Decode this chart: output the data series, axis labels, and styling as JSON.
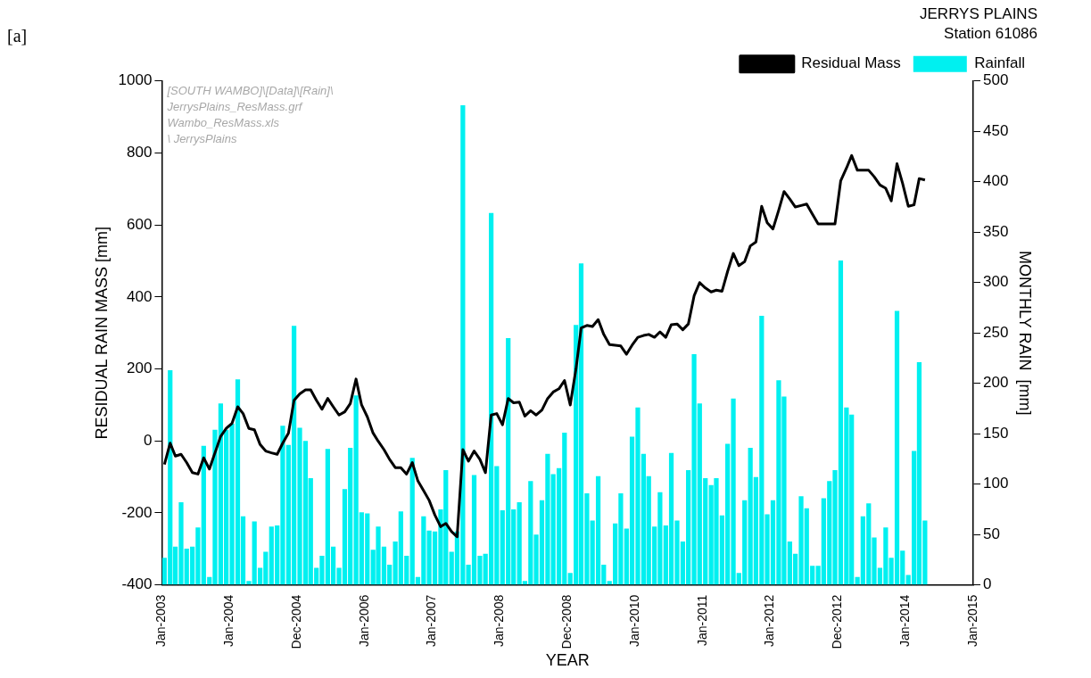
{
  "chart_data": {
    "type": "bar",
    "title": "JERRYS PLAINS",
    "subtitle": "Station 61086",
    "xlabel": "YEAR",
    "ylabel": "RESIDUAL RAIN MASS [mm]",
    "y2label": "MONTHLY RAIN  [mm]",
    "annotations": [
      "[a]",
      "[SOUTH WAMBO]\\[Data]\\[Rain]\\",
      "JerrysPlains_ResMass.grf",
      "Wambo_ResMass.xls",
      "\\ JerrysPlains"
    ],
    "x": [
      "2003-01",
      "2003-02",
      "2003-03",
      "2003-04",
      "2003-05",
      "2003-06",
      "2003-07",
      "2003-08",
      "2003-09",
      "2003-10",
      "2003-11",
      "2003-12",
      "2004-01",
      "2004-02",
      "2004-03",
      "2004-04",
      "2004-05",
      "2004-06",
      "2004-07",
      "2004-08",
      "2004-09",
      "2004-10",
      "2004-11",
      "2004-12",
      "2005-01",
      "2005-02",
      "2005-03",
      "2005-04",
      "2005-05",
      "2005-06",
      "2005-07",
      "2005-08",
      "2005-09",
      "2005-10",
      "2005-11",
      "2005-12",
      "2006-01",
      "2006-02",
      "2006-03",
      "2006-04",
      "2006-05",
      "2006-06",
      "2006-07",
      "2006-08",
      "2006-09",
      "2006-10",
      "2006-11",
      "2006-12",
      "2007-01",
      "2007-02",
      "2007-03",
      "2007-04",
      "2007-05",
      "2007-06",
      "2007-07",
      "2007-08",
      "2007-09",
      "2007-10",
      "2007-11",
      "2007-12",
      "2008-01",
      "2008-02",
      "2008-03",
      "2008-04",
      "2008-05",
      "2008-06",
      "2008-07",
      "2008-08",
      "2008-09",
      "2008-10",
      "2008-11",
      "2008-12",
      "2009-01",
      "2009-02",
      "2009-03",
      "2009-04",
      "2009-05",
      "2009-06",
      "2009-07",
      "2009-08",
      "2009-09",
      "2009-10",
      "2009-11",
      "2009-12",
      "2010-01",
      "2010-02",
      "2010-03",
      "2010-04",
      "2010-05",
      "2010-06",
      "2010-07",
      "2010-08",
      "2010-09",
      "2010-10",
      "2010-11",
      "2010-12",
      "2011-01",
      "2011-02",
      "2011-03",
      "2011-04",
      "2011-05",
      "2011-06",
      "2011-07",
      "2011-08",
      "2011-09",
      "2011-10",
      "2011-11",
      "2011-12",
      "2012-01",
      "2012-02",
      "2012-03",
      "2012-04",
      "2012-05",
      "2012-06",
      "2012-07",
      "2012-08",
      "2012-09",
      "2012-10",
      "2012-11",
      "2012-12",
      "2013-01",
      "2013-02",
      "2013-03",
      "2013-04",
      "2013-05",
      "2013-06",
      "2013-07",
      "2013-08",
      "2013-09",
      "2013-10",
      "2013-11",
      "2013-12",
      "2014-01",
      "2014-02",
      "2014-03",
      "2014-04"
    ],
    "series": [
      {
        "name": "Rainfall",
        "axis": "y2",
        "color": "#00f0f0",
        "values": [
          27,
          213,
          38,
          82,
          36,
          38,
          57,
          138,
          8,
          154,
          180,
          154,
          160,
          204,
          68,
          4,
          63,
          17,
          33,
          58,
          59,
          158,
          139,
          257,
          156,
          143,
          106,
          17,
          29,
          135,
          38,
          17,
          95,
          136,
          188,
          72,
          71,
          35,
          58,
          38,
          20,
          43,
          73,
          29,
          126,
          8,
          68,
          54,
          53,
          75,
          114,
          33,
          53,
          476,
          20,
          109,
          29,
          31,
          369,
          118,
          74,
          245,
          75,
          82,
          4,
          103,
          50,
          84,
          130,
          110,
          116,
          151,
          12,
          258,
          319,
          91,
          64,
          108,
          20,
          4,
          61,
          91,
          56,
          147,
          176,
          130,
          108,
          58,
          92,
          59,
          131,
          64,
          43,
          114,
          229,
          180,
          106,
          99,
          106,
          69,
          140,
          185,
          12,
          84,
          136,
          107,
          267,
          70,
          84,
          203,
          187,
          43,
          31,
          88,
          76,
          19,
          19,
          86,
          103,
          114,
          322,
          176,
          169,
          8,
          68,
          81,
          47,
          17,
          57,
          27,
          272,
          34,
          10,
          133,
          221,
          64
        ]
      },
      {
        "name": "Residual Mass",
        "type": "line",
        "color": "#000000",
        "values": [
          -65,
          -6,
          -42,
          -37,
          -60,
          -88,
          -92,
          -47,
          -78,
          -33,
          13,
          35,
          49,
          95,
          76,
          35,
          31,
          -10,
          -28,
          -33,
          -37,
          -6,
          22,
          113,
          131,
          142,
          142,
          113,
          88,
          118,
          95,
          72,
          81,
          104,
          172,
          100,
          67,
          22,
          -1,
          -24,
          -51,
          -74,
          -74,
          -92,
          -60,
          -111,
          -138,
          -165,
          -206,
          -238,
          -229,
          -252,
          -266,
          -24,
          -56,
          -28,
          -51,
          -88,
          72,
          76,
          45,
          118,
          106,
          108,
          69,
          84,
          72,
          86,
          118,
          136,
          145,
          168,
          100,
          200,
          314,
          321,
          318,
          337,
          296,
          268,
          266,
          264,
          241,
          266,
          288,
          293,
          296,
          288,
          303,
          288,
          323,
          325,
          309,
          325,
          403,
          440,
          425,
          414,
          419,
          416,
          471,
          521,
          487,
          498,
          542,
          553,
          652,
          606,
          589,
          641,
          693,
          672,
          650,
          654,
          658,
          630,
          603,
          603,
          603,
          603,
          723,
          758,
          793,
          752,
          752,
          752,
          734,
          711,
          702,
          667,
          770,
          716,
          652,
          656,
          729,
          725
        ]
      }
    ],
    "xlim": [
      "2003-01-01",
      "2015-01-01"
    ],
    "xticks": [
      {
        "value": "2003-01-01",
        "label": "Jan-2003"
      },
      {
        "value": "2004-01-01",
        "label": "Jan-2004"
      },
      {
        "value": "2004-12-31",
        "label": "Dec-2004"
      },
      {
        "value": "2006-01-01",
        "label": "Jan-2006"
      },
      {
        "value": "2007-01-01",
        "label": "Jan-2007"
      },
      {
        "value": "2008-01-01",
        "label": "Jan-2008"
      },
      {
        "value": "2008-12-31",
        "label": "Dec-2008"
      },
      {
        "value": "2010-01-01",
        "label": "Jan-2010"
      },
      {
        "value": "2011-01-01",
        "label": "Jan-2011"
      },
      {
        "value": "2012-01-01",
        "label": "Jan-2012"
      },
      {
        "value": "2012-12-31",
        "label": "Dec-2012"
      },
      {
        "value": "2014-01-01",
        "label": "Jan-2014"
      },
      {
        "value": "2015-01-01",
        "label": "Jan-2015"
      }
    ],
    "ylim": [
      -400,
      1000
    ],
    "yticks": [
      -400,
      -200,
      0,
      200,
      400,
      600,
      800,
      1000
    ],
    "y2lim": [
      0,
      500
    ],
    "y2ticks": [
      0,
      50,
      100,
      150,
      200,
      250,
      300,
      350,
      400,
      450,
      500
    ],
    "grid": false,
    "legend": "top right",
    "marker": "none",
    "line_style": "solid"
  }
}
